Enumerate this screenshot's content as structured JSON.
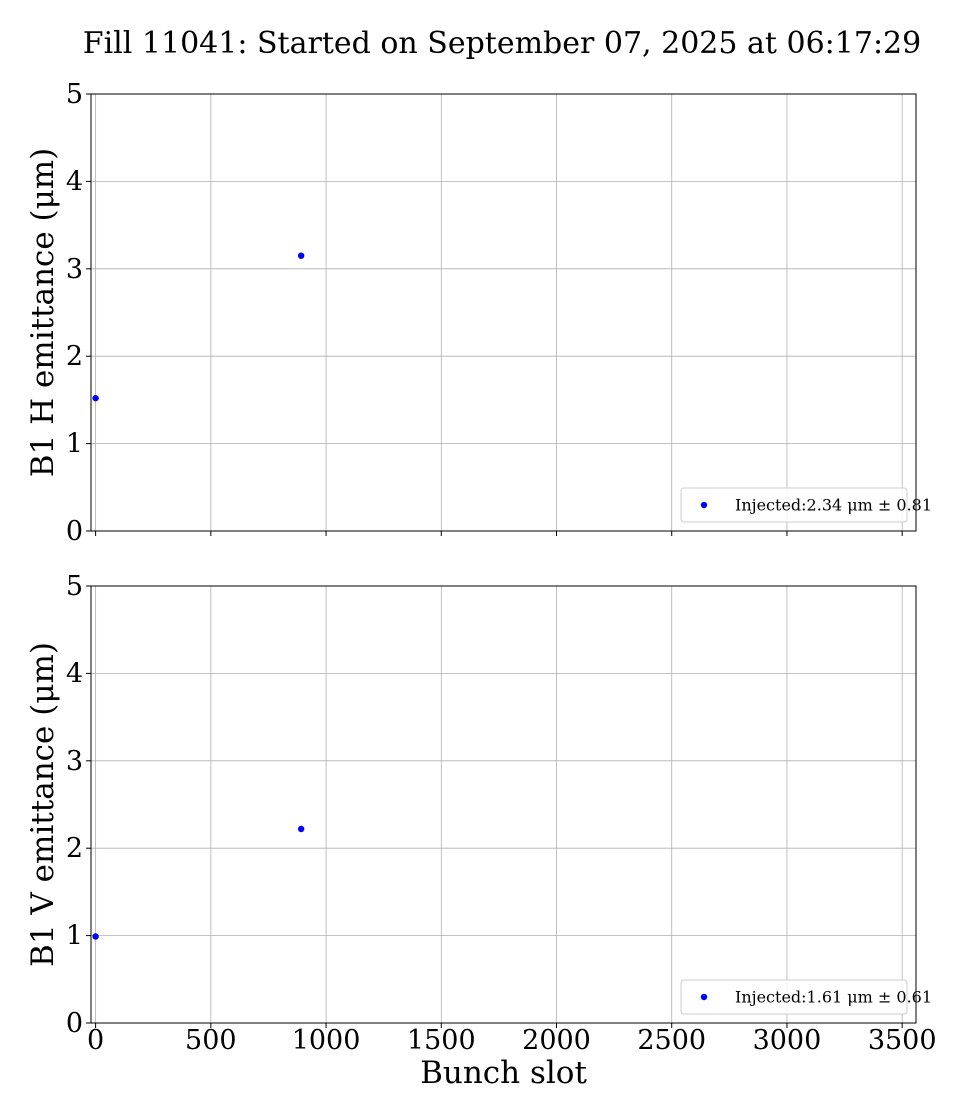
{
  "chart_data": [
    {
      "type": "scatter",
      "title": "Fill 11041: Started on September 07, 2025 at 06:17:29",
      "xlabel": "",
      "ylabel": "B1 H emittance (μm)",
      "xlim": [
        -20,
        3560
      ],
      "ylim": [
        0,
        5
      ],
      "xticks": [
        0,
        500,
        1000,
        1500,
        2000,
        2500,
        3000,
        3500
      ],
      "yticks": [
        0,
        1,
        2,
        3,
        4,
        5
      ],
      "grid": true,
      "legend_position": "lower-right",
      "color": "#0000ff",
      "series": [
        {
          "name": "Injected:2.34 μm ± 0.81",
          "x": [
            0,
            892
          ],
          "y": [
            1.52,
            3.15
          ]
        }
      ]
    },
    {
      "type": "scatter",
      "xlabel": "Bunch slot",
      "ylabel": "B1 V emittance (μm)",
      "xlim": [
        -20,
        3560
      ],
      "ylim": [
        0,
        5
      ],
      "xticks": [
        0,
        500,
        1000,
        1500,
        2000,
        2500,
        3000,
        3500
      ],
      "yticks": [
        0,
        1,
        2,
        3,
        4,
        5
      ],
      "grid": true,
      "legend_position": "lower-right",
      "color": "#0000ff",
      "series": [
        {
          "name": "Injected:1.61 μm ± 0.61",
          "x": [
            0,
            892
          ],
          "y": [
            0.99,
            2.22
          ]
        }
      ]
    }
  ]
}
